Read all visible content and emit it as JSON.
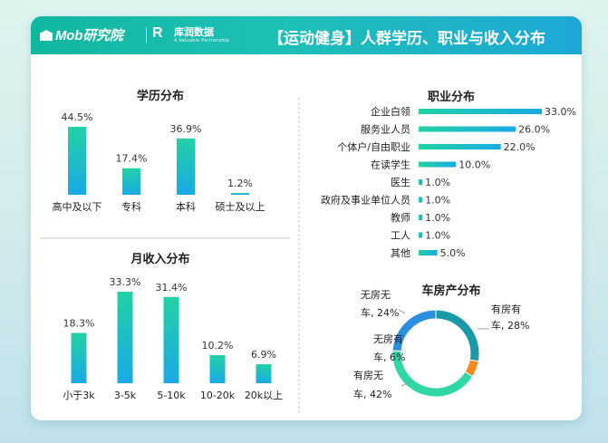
{
  "header": {
    "brand_mob": "Mob研究院",
    "brand_logo": "R",
    "brand_name": "库润数据",
    "brand_sub": "A Valuable Partnership",
    "title": "【运动健身】人群学历、职业与收入分布"
  },
  "colors": {
    "header_start": "#10b7a0",
    "header_end": "#1da8d6",
    "bar_top": "#22d2a4",
    "bar_bottom": "#1aa9e6",
    "donut_teal": "#1a9aa6",
    "donut_orange": "#f48a1f",
    "donut_green": "#2fd6a6",
    "donut_blue": "#2b8fe0"
  },
  "chart_data": [
    {
      "id": "education",
      "type": "bar",
      "title": "学历分布",
      "categories": [
        "高中及以下",
        "专科",
        "本科",
        "硕士及以上"
      ],
      "values": [
        44.5,
        17.4,
        36.9,
        1.2
      ],
      "value_labels": [
        "44.5%",
        "17.4%",
        "36.9%",
        "1.2%"
      ],
      "unit": "%"
    },
    {
      "id": "income",
      "type": "bar",
      "title": "月收入分布",
      "categories": [
        "小于3k",
        "3-5k",
        "5-10k",
        "10-20k",
        "20k以上"
      ],
      "values": [
        18.3,
        33.3,
        31.4,
        10.2,
        6.9
      ],
      "value_labels": [
        "18.3%",
        "33.3%",
        "31.4%",
        "10.2%",
        "6.9%"
      ],
      "unit": "%"
    },
    {
      "id": "occupation",
      "type": "bar",
      "orientation": "horizontal",
      "title": "职业分布",
      "categories": [
        "企业白领",
        "服务业人员",
        "个体户/自由职业",
        "在读学生",
        "医生",
        "政府及事业单位人员",
        "教师",
        "工人",
        "其他"
      ],
      "values": [
        33.0,
        26.0,
        22.0,
        10.0,
        1.0,
        1.0,
        1.0,
        1.0,
        5.0
      ],
      "value_labels": [
        "33.0%",
        "26.0%",
        "22.0%",
        "10.0%",
        "1.0%",
        "1.0%",
        "1.0%",
        "1.0%",
        "5.0%"
      ],
      "unit": "%"
    },
    {
      "id": "housing",
      "type": "pie",
      "style": "donut",
      "title": "车房产分布",
      "categories": [
        "有房有车",
        "无房有车",
        "有房无车",
        "无房无车"
      ],
      "values": [
        28,
        6,
        42,
        24
      ],
      "label_lines": [
        [
          "有房有",
          "车, 28%"
        ],
        [
          "无房有",
          "车, 6%"
        ],
        [
          "有房无",
          "车, 42%"
        ],
        [
          "无房无",
          "车, 24%"
        ]
      ]
    }
  ]
}
